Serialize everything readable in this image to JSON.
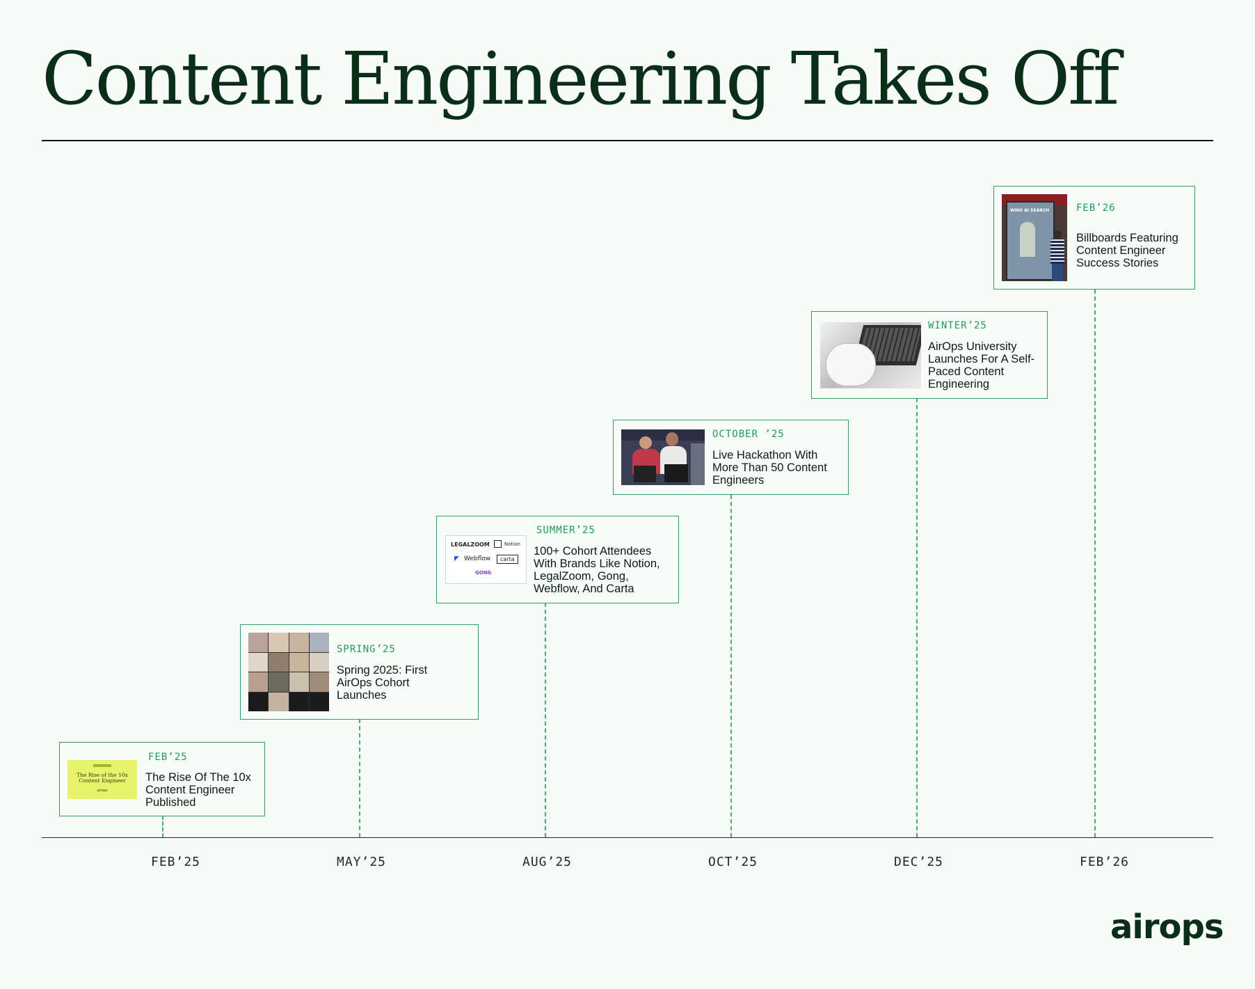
{
  "title": "Content Engineering Takes Off",
  "axis_ticks": [
    "FEB’25",
    "MAY’25",
    "AUG’25",
    "OCT’25",
    "DEC’25",
    "FEB’26"
  ],
  "milestones": [
    {
      "date": "FEB’25",
      "text": "The Rise Of The 10x Content Engineer Published",
      "thumb_lines": [
        "The Rise of the 10x",
        "Content Engineer",
        "airops"
      ]
    },
    {
      "date": "SPRING’25",
      "text": "Spring 2025: First AirOps Cohort Launches"
    },
    {
      "date": "SUMMER’25",
      "text": "100+ Cohort Attendees With Brands Like Notion, LegalZoom, Gong, Webflow, And Carta",
      "brands": [
        "LEGALZOOM",
        "Notion",
        "Webflow",
        "carta",
        "GONG"
      ]
    },
    {
      "date": "OCTOBER ’25",
      "text": "Live Hackathon With More Than 50 Content Engineers"
    },
    {
      "date": "WINTER’25",
      "text": "AirOps University Launches For A Self-Paced Content Engineering"
    },
    {
      "date": "FEB’26",
      "text": "Billboards Featuring Content Engineer Success Stories",
      "billboard_text": "WINS AI SEARCH"
    }
  ],
  "logo": "airops",
  "colors": {
    "accent": "#2e9e68",
    "ink": "#0a2e17",
    "background": "#f6fbf7"
  }
}
